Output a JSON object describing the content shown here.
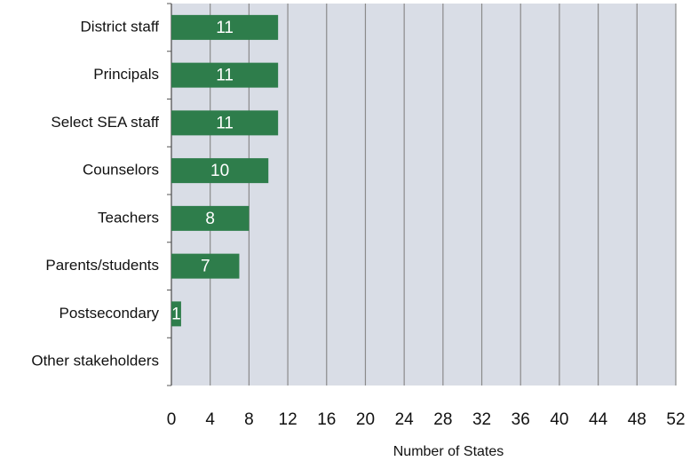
{
  "chart_data": {
    "type": "bar",
    "orientation": "horizontal",
    "categories": [
      "District staff",
      "Principals",
      "Select SEA staff",
      "Counselors",
      "Teachers",
      "Parents/students",
      "Postsecondary",
      "Other stakeholders"
    ],
    "values": [
      11,
      11,
      11,
      10,
      8,
      7,
      1,
      0
    ],
    "value_labels": [
      "11",
      "11",
      "11",
      "10",
      "8",
      "7",
      "1",
      null
    ],
    "color": "#2e7d4b",
    "xlabel": "Number of States",
    "xlim": [
      0,
      52
    ],
    "xticks": [
      0,
      4,
      8,
      12,
      16,
      20,
      24,
      28,
      32,
      36,
      40,
      44,
      48,
      52
    ],
    "grid": true
  }
}
